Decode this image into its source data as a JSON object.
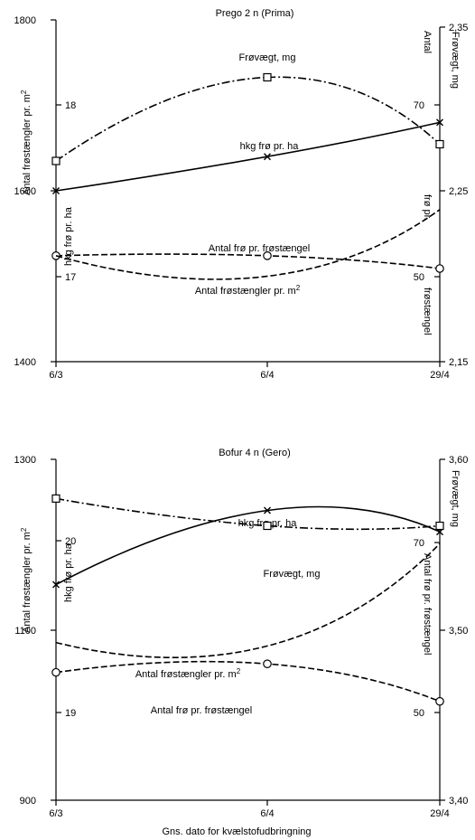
{
  "chart_data": [
    {
      "type": "line",
      "title": "Prego 2 n (Prima)",
      "categories": [
        "6/3",
        "6/4",
        "29/4"
      ],
      "left_axis": {
        "label": "Antal frøstængler pr. m",
        "label_sup": "2",
        "ticks": [
          "1400",
          "1600",
          "1800"
        ],
        "range": [
          1400,
          1800
        ]
      },
      "right_axis": {
        "label": "Frøvægt, mg",
        "ticks": [
          "2,15",
          "2,25",
          "2,35"
        ],
        "range": [
          2.15,
          2.35
        ]
      },
      "inner_axes": [
        {
          "label": "hkg frø pr. ha",
          "ticks": [
            "17",
            "18"
          ]
        },
        {
          "label_top": "Antal",
          "label_mid": "frø pr.",
          "label_bot": "frøstængel",
          "ticks": [
            "50",
            "70"
          ]
        }
      ],
      "series": [
        {
          "name": "Frøvægt, mg",
          "marker": "square",
          "style": "dashdot",
          "values": [
            2.27,
            2.32,
            2.28
          ]
        },
        {
          "name": "hkg frø pr. ha",
          "marker": "x",
          "style": "solid",
          "values": [
            1600,
            1640,
            1680
          ]
        },
        {
          "name": "Antal frø pr. frøstængel",
          "marker": "circle",
          "style": "dash",
          "values": [
            1524,
            1524,
            1509
          ]
        },
        {
          "name": "Antal frøstængler pr. m",
          "name_sup": "2",
          "marker": "none",
          "style": "dash",
          "values": [
            1524,
            1500,
            1578
          ]
        }
      ]
    },
    {
      "type": "line",
      "title": "Bofur 4 n (Gero)",
      "categories": [
        "6/3",
        "6/4",
        "29/4"
      ],
      "xlabel": "Gns. dato for kvælstofudbringning",
      "left_axis": {
        "label": "Antal frøstængler pr. m",
        "label_sup": "2",
        "ticks": [
          "900",
          "1100",
          "1300"
        ],
        "range": [
          900,
          1300
        ]
      },
      "right_axis": {
        "label": "Frøvægt, mg",
        "ticks": [
          "3,40",
          "3,50",
          "3,60"
        ],
        "range": [
          3.4,
          3.6
        ]
      },
      "inner_axes": [
        {
          "label": "hkg frø pr. ha",
          "ticks": [
            "19",
            "20"
          ]
        },
        {
          "label": "Antal frø pr. frøstængel",
          "ticks": [
            "50",
            "70"
          ]
        }
      ],
      "series": [
        {
          "name": "hkg frø pr. ha",
          "marker": "x",
          "style": "solid",
          "values": [
            1153,
            1240,
            1215
          ]
        },
        {
          "name": "Frøvægt, mg",
          "marker": "square",
          "style": "dashdot",
          "values": [
            3.577,
            3.561,
            3.561
          ]
        },
        {
          "name": "Antal frøstængler pr. m",
          "name_sup": "2",
          "marker": "none",
          "style": "dash",
          "values": [
            1085,
            1081,
            1201
          ]
        },
        {
          "name": "Antal frø pr. frøstængel",
          "marker": "circle",
          "style": "dash",
          "values": [
            1050,
            1060,
            1016
          ]
        }
      ]
    }
  ]
}
